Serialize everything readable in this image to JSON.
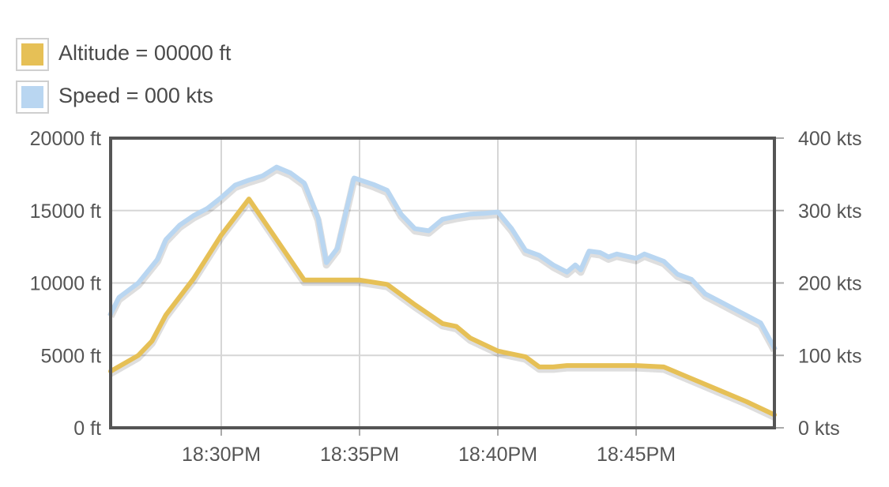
{
  "legend": [
    {
      "label": "Altitude = 00000 ft",
      "color": "#e6c056"
    },
    {
      "label": "Speed = 000 kts",
      "color": "#b9d6f1"
    }
  ],
  "chart_data": {
    "type": "line",
    "x_ticks": [
      "18:30PM",
      "18:35PM",
      "18:40PM",
      "18:45PM"
    ],
    "x_tick_values": [
      30,
      35,
      40,
      45
    ],
    "xlim": [
      26,
      50
    ],
    "y_left": {
      "ticks": [
        "0 ft",
        "5000 ft",
        "10000 ft",
        "15000 ft",
        "20000 ft"
      ],
      "ylim": [
        0,
        20000
      ]
    },
    "y_right": {
      "ticks": [
        "0 kts",
        "100 kts",
        "200 kts",
        "300 kts",
        "400 kts"
      ],
      "ylim": [
        0,
        400
      ]
    },
    "grid": true,
    "series": [
      {
        "name": "Altitude",
        "axis": "left",
        "color": "#e6c056",
        "points": [
          [
            26,
            3900
          ],
          [
            27,
            5000
          ],
          [
            27.5,
            6000
          ],
          [
            28,
            7800
          ],
          [
            29,
            10300
          ],
          [
            30,
            13300
          ],
          [
            31,
            15800
          ],
          [
            32,
            13000
          ],
          [
            33,
            10200
          ],
          [
            34,
            10200
          ],
          [
            35,
            10200
          ],
          [
            36,
            9900
          ],
          [
            37,
            8500
          ],
          [
            38,
            7200
          ],
          [
            38.5,
            7000
          ],
          [
            39,
            6200
          ],
          [
            40,
            5300
          ],
          [
            41,
            4900
          ],
          [
            41.5,
            4200
          ],
          [
            42,
            4200
          ],
          [
            42.5,
            4300
          ],
          [
            43,
            4300
          ],
          [
            45,
            4300
          ],
          [
            46,
            4200
          ],
          [
            47,
            3400
          ],
          [
            48,
            2600
          ],
          [
            49,
            1800
          ],
          [
            50,
            900
          ]
        ]
      },
      {
        "name": "Speed",
        "axis": "right",
        "color": "#b9d6f1",
        "points": [
          [
            26,
            157
          ],
          [
            26.3,
            180
          ],
          [
            27,
            200
          ],
          [
            27.7,
            233
          ],
          [
            28,
            260
          ],
          [
            28.5,
            280
          ],
          [
            29,
            293
          ],
          [
            29.5,
            303
          ],
          [
            30,
            318
          ],
          [
            30.5,
            335
          ],
          [
            31,
            342
          ],
          [
            31.5,
            348
          ],
          [
            32,
            360
          ],
          [
            32.5,
            352
          ],
          [
            33,
            338
          ],
          [
            33.5,
            290
          ],
          [
            33.8,
            228
          ],
          [
            34.2,
            248
          ],
          [
            34.8,
            345
          ],
          [
            35.5,
            336
          ],
          [
            36,
            328
          ],
          [
            36.5,
            295
          ],
          [
            37,
            275
          ],
          [
            37.5,
            272
          ],
          [
            38,
            288
          ],
          [
            38.5,
            292
          ],
          [
            39,
            295
          ],
          [
            39.5,
            296
          ],
          [
            40,
            298
          ],
          [
            40.5,
            275
          ],
          [
            41,
            245
          ],
          [
            41.5,
            238
          ],
          [
            42,
            225
          ],
          [
            42.5,
            215
          ],
          [
            42.8,
            225
          ],
          [
            43,
            218
          ],
          [
            43.3,
            244
          ],
          [
            43.7,
            242
          ],
          [
            44,
            236
          ],
          [
            44.3,
            240
          ],
          [
            45,
            234
          ],
          [
            45.3,
            240
          ],
          [
            46,
            230
          ],
          [
            46.5,
            212
          ],
          [
            47,
            205
          ],
          [
            47.5,
            185
          ],
          [
            48,
            175
          ],
          [
            48.5,
            165
          ],
          [
            49,
            155
          ],
          [
            49.5,
            145
          ],
          [
            49.8,
            124
          ],
          [
            50,
            110
          ]
        ]
      }
    ]
  }
}
